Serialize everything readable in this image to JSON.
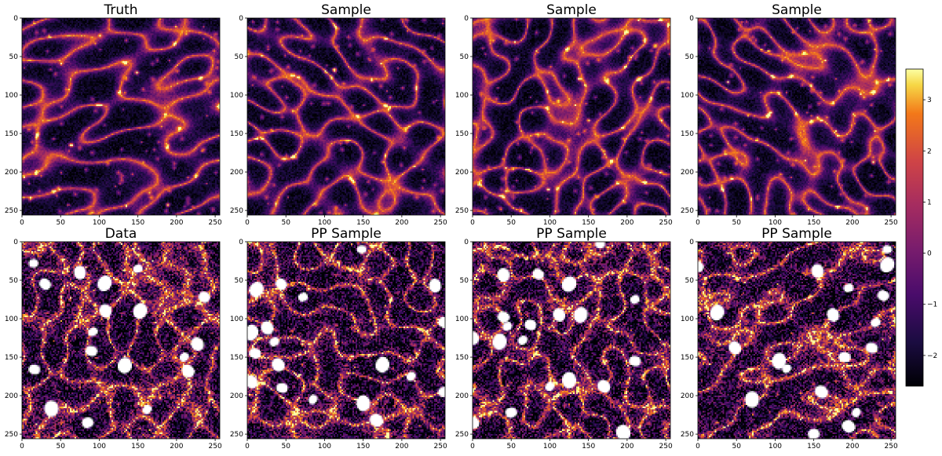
{
  "chart_data": [
    {
      "type": "heatmap",
      "title": "Truth",
      "xlim": [
        0,
        256
      ],
      "ylim": [
        256,
        0
      ],
      "xticks": [
        0,
        50,
        100,
        150,
        200,
        250
      ],
      "yticks": [
        0,
        50,
        100,
        150,
        200,
        250
      ],
      "colormap": "inferno",
      "masked_holes": false
    },
    {
      "type": "heatmap",
      "title": "Sample",
      "xlim": [
        0,
        256
      ],
      "ylim": [
        256,
        0
      ],
      "xticks": [
        0,
        50,
        100,
        150,
        200,
        250
      ],
      "yticks": [
        0,
        50,
        100,
        150,
        200,
        250
      ],
      "colormap": "inferno",
      "masked_holes": false
    },
    {
      "type": "heatmap",
      "title": "Sample",
      "xlim": [
        0,
        256
      ],
      "ylim": [
        256,
        0
      ],
      "xticks": [
        0,
        50,
        100,
        150,
        200,
        250
      ],
      "yticks": [
        0,
        50,
        100,
        150,
        200,
        250
      ],
      "colormap": "inferno",
      "masked_holes": false
    },
    {
      "type": "heatmap",
      "title": "Sample",
      "xlim": [
        0,
        256
      ],
      "ylim": [
        256,
        0
      ],
      "xticks": [
        0,
        50,
        100,
        150,
        200,
        250
      ],
      "yticks": [
        0,
        50,
        100,
        150,
        200,
        250
      ],
      "colormap": "inferno",
      "masked_holes": false
    },
    {
      "type": "heatmap",
      "title": "Data",
      "xlim": [
        0,
        256
      ],
      "ylim": [
        256,
        0
      ],
      "xticks": [
        0,
        50,
        100,
        150,
        200,
        250
      ],
      "yticks": [
        0,
        50,
        100,
        150,
        200,
        250
      ],
      "colormap": "inferno",
      "masked_holes": true,
      "holes": [
        [
          15,
          28
        ],
        [
          30,
          55
        ],
        [
          75,
          40
        ],
        [
          107,
          54
        ],
        [
          150,
          35
        ],
        [
          236,
          72
        ],
        [
          108,
          90
        ],
        [
          153,
          90
        ],
        [
          92,
          117
        ],
        [
          90,
          142
        ],
        [
          227,
          133
        ],
        [
          133,
          161
        ],
        [
          210,
          150
        ],
        [
          16,
          166
        ],
        [
          215,
          168
        ],
        [
          38,
          217
        ],
        [
          162,
          218
        ],
        [
          85,
          235
        ]
      ]
    },
    {
      "type": "heatmap",
      "title": "PP Sample",
      "xlim": [
        0,
        256
      ],
      "ylim": [
        256,
        0
      ],
      "xticks": [
        0,
        50,
        100,
        150,
        200,
        250
      ],
      "yticks": [
        0,
        50,
        100,
        150,
        200,
        250
      ],
      "colormap": "inferno",
      "masked_holes": true,
      "holes": [
        [
          148,
          10
        ],
        [
          44,
          55
        ],
        [
          243,
          57
        ],
        [
          12,
          62
        ],
        [
          72,
          72
        ],
        [
          255,
          105
        ],
        [
          26,
          112
        ],
        [
          5,
          118
        ],
        [
          35,
          130
        ],
        [
          10,
          145
        ],
        [
          40,
          160
        ],
        [
          175,
          160
        ],
        [
          212,
          175
        ],
        [
          45,
          190
        ],
        [
          5,
          182
        ],
        [
          150,
          210
        ],
        [
          85,
          205
        ],
        [
          255,
          195
        ],
        [
          167,
          232
        ]
      ]
    },
    {
      "type": "heatmap",
      "title": "PP Sample",
      "xlim": [
        0,
        256
      ],
      "ylim": [
        256,
        0
      ],
      "xticks": [
        0,
        50,
        100,
        150,
        200,
        250
      ],
      "yticks": [
        0,
        50,
        100,
        150,
        200,
        250
      ],
      "colormap": "inferno",
      "masked_holes": true,
      "holes": [
        [
          165,
          3
        ],
        [
          85,
          42
        ],
        [
          40,
          43
        ],
        [
          125,
          55
        ],
        [
          210,
          75
        ],
        [
          40,
          98
        ],
        [
          112,
          95
        ],
        [
          140,
          95
        ],
        [
          45,
          110
        ],
        [
          75,
          108
        ],
        [
          0,
          125
        ],
        [
          35,
          130
        ],
        [
          65,
          128
        ],
        [
          210,
          155
        ],
        [
          170,
          188
        ],
        [
          125,
          180
        ],
        [
          100,
          188
        ],
        [
          50,
          222
        ],
        [
          0,
          235
        ],
        [
          195,
          248
        ]
      ]
    },
    {
      "type": "heatmap",
      "title": "PP Sample",
      "xlim": [
        0,
        256
      ],
      "ylim": [
        256,
        0
      ],
      "xticks": [
        0,
        50,
        100,
        150,
        200,
        250
      ],
      "yticks": [
        0,
        50,
        100,
        150,
        200,
        250
      ],
      "colormap": "inferno",
      "masked_holes": true,
      "holes": [
        [
          245,
          10
        ],
        [
          0,
          32
        ],
        [
          155,
          38
        ],
        [
          245,
          30
        ],
        [
          195,
          60
        ],
        [
          240,
          70
        ],
        [
          175,
          95
        ],
        [
          25,
          92
        ],
        [
          230,
          105
        ],
        [
          225,
          138
        ],
        [
          48,
          138
        ],
        [
          105,
          155
        ],
        [
          115,
          165
        ],
        [
          190,
          150
        ],
        [
          160,
          195
        ],
        [
          70,
          205
        ],
        [
          205,
          222
        ],
        [
          150,
          250
        ],
        [
          195,
          240
        ]
      ]
    }
  ],
  "colorbar": {
    "colormap": "inferno",
    "min": -2.6,
    "max": 3.6,
    "ticks": [
      -2,
      -1,
      0,
      1,
      2,
      3
    ],
    "tick_labels": [
      "−2",
      "−1",
      "0",
      "1",
      "2",
      "3"
    ]
  }
}
